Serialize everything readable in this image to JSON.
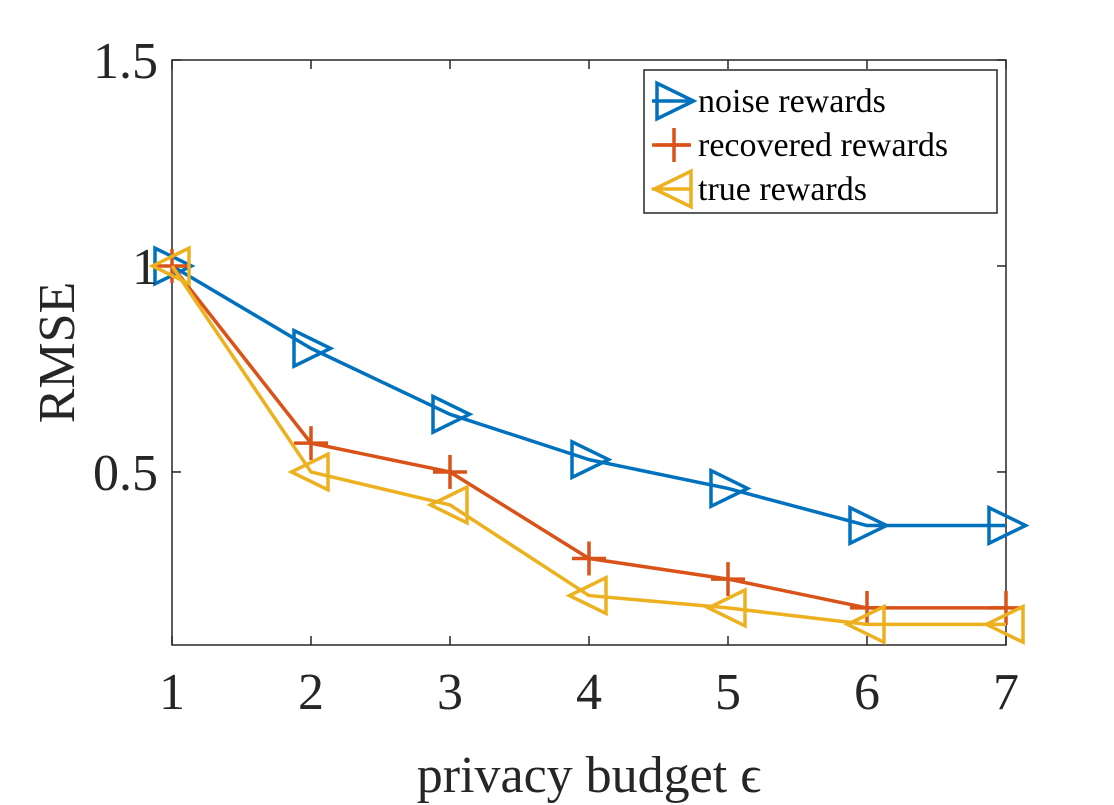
{
  "chart_data": {
    "type": "line",
    "xlabel": "privacy budget ϵ",
    "ylabel": "RMSE",
    "xlim": [
      1,
      7
    ],
    "ylim": [
      0.08,
      1.5
    ],
    "xticks": [
      "1",
      "2",
      "3",
      "4",
      "5",
      "6",
      "7"
    ],
    "yticks": [
      "0.5",
      "1",
      "1.5"
    ],
    "ytick_values": [
      0.5,
      1,
      1.5
    ],
    "grid": false,
    "legend_position": "top-right",
    "x": [
      1,
      2,
      3,
      4,
      5,
      6,
      7
    ],
    "series": [
      {
        "name": "noise rewards",
        "marker": "triangle-right",
        "color": "#0072BD",
        "values": [
          1.0,
          0.8,
          0.64,
          0.53,
          0.46,
          0.37,
          0.37
        ]
      },
      {
        "name": "recovered rewards",
        "marker": "plus",
        "color": "#D95319",
        "values": [
          1.0,
          0.57,
          0.5,
          0.29,
          0.24,
          0.17,
          0.17
        ]
      },
      {
        "name": "true rewards",
        "marker": "triangle-left",
        "color": "#EDB120",
        "values": [
          1.0,
          0.5,
          0.42,
          0.2,
          0.17,
          0.13,
          0.13
        ]
      }
    ]
  }
}
